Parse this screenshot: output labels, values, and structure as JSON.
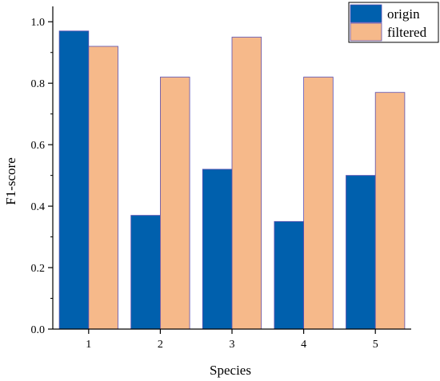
{
  "chart_data": {
    "type": "bar",
    "xlabel": "Species",
    "ylabel": "F1-score",
    "categories": [
      "1",
      "2",
      "3",
      "4",
      "5"
    ],
    "ylim": [
      0.0,
      1.05
    ],
    "yticks": [
      "0.0",
      "0.2",
      "0.4",
      "0.6",
      "0.8",
      "1.0"
    ],
    "grid": false,
    "legend_position": "top-right",
    "series": [
      {
        "name": "origin",
        "values": [
          0.97,
          0.37,
          0.52,
          0.35,
          0.5
        ],
        "color": "#0060ad"
      },
      {
        "name": "filtered",
        "values": [
          0.92,
          0.82,
          0.95,
          0.82,
          0.77
        ],
        "color": "#f6b98a"
      }
    ],
    "bar_edge_color": "#5b4fb0"
  }
}
